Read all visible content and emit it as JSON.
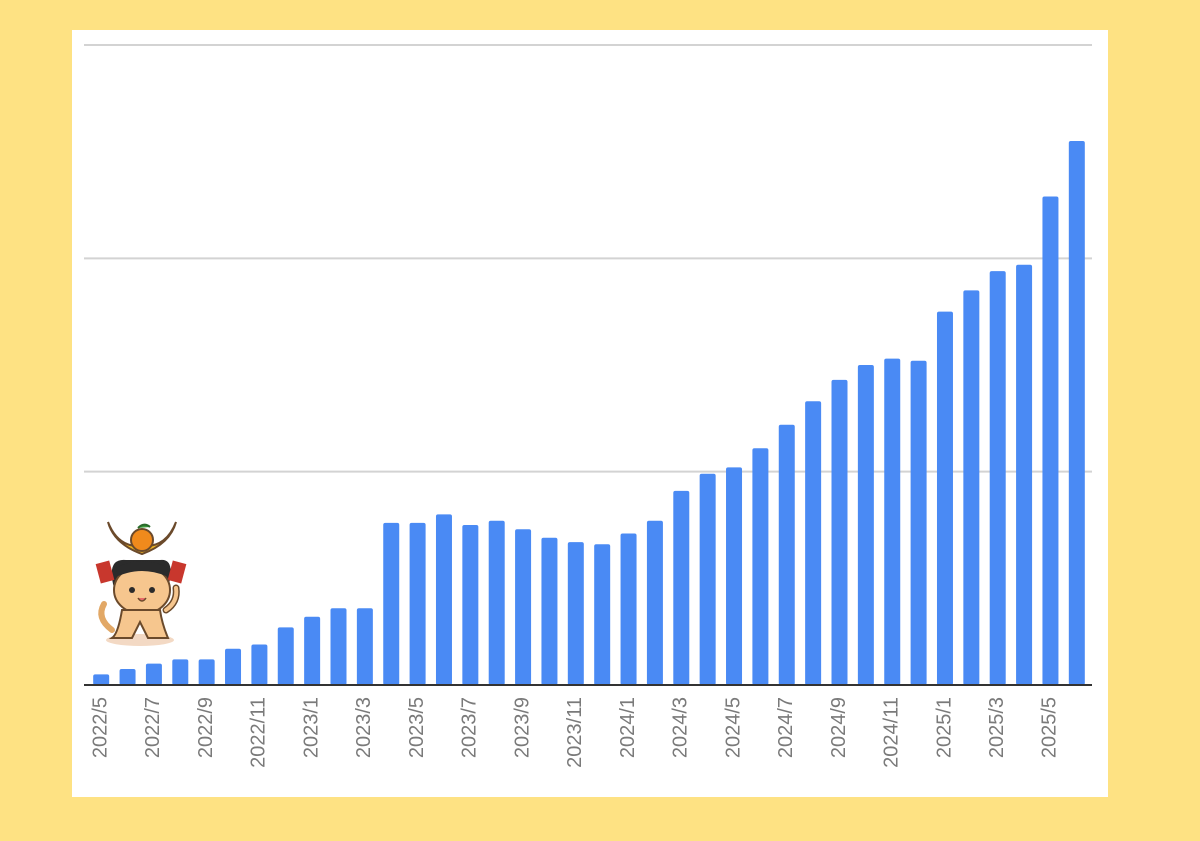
{
  "chart_data": {
    "type": "bar",
    "categories": [
      "2022/5",
      null,
      "2022/7",
      null,
      "2022/9",
      null,
      "2022/11",
      null,
      "2023/1",
      null,
      "2023/3",
      null,
      "2023/5",
      null,
      "2023/7",
      null,
      "2023/9",
      null,
      "2023/11",
      null,
      "2024/1",
      null,
      "2024/3",
      null,
      "2024/5",
      null,
      "2024/7",
      null,
      "2024/9",
      null,
      "2024/11",
      null,
      "2025/1",
      null,
      "2025/3",
      null,
      "2025/5",
      null
    ],
    "values": [
      0.05,
      0.075,
      0.1,
      0.12,
      0.12,
      0.17,
      0.19,
      0.27,
      0.32,
      0.36,
      0.36,
      0.76,
      0.76,
      0.8,
      0.75,
      0.77,
      0.73,
      0.69,
      0.67,
      0.66,
      0.71,
      0.77,
      0.91,
      0.99,
      1.02,
      1.11,
      1.22,
      1.33,
      1.43,
      1.5,
      1.53,
      1.52,
      1.75,
      1.85,
      1.94,
      1.97,
      2.29,
      2.55
    ],
    "color": "#4a8af4",
    "ylim": [
      0,
      3
    ],
    "gridlines": [
      0,
      1,
      2,
      3
    ],
    "grid": true
  }
}
